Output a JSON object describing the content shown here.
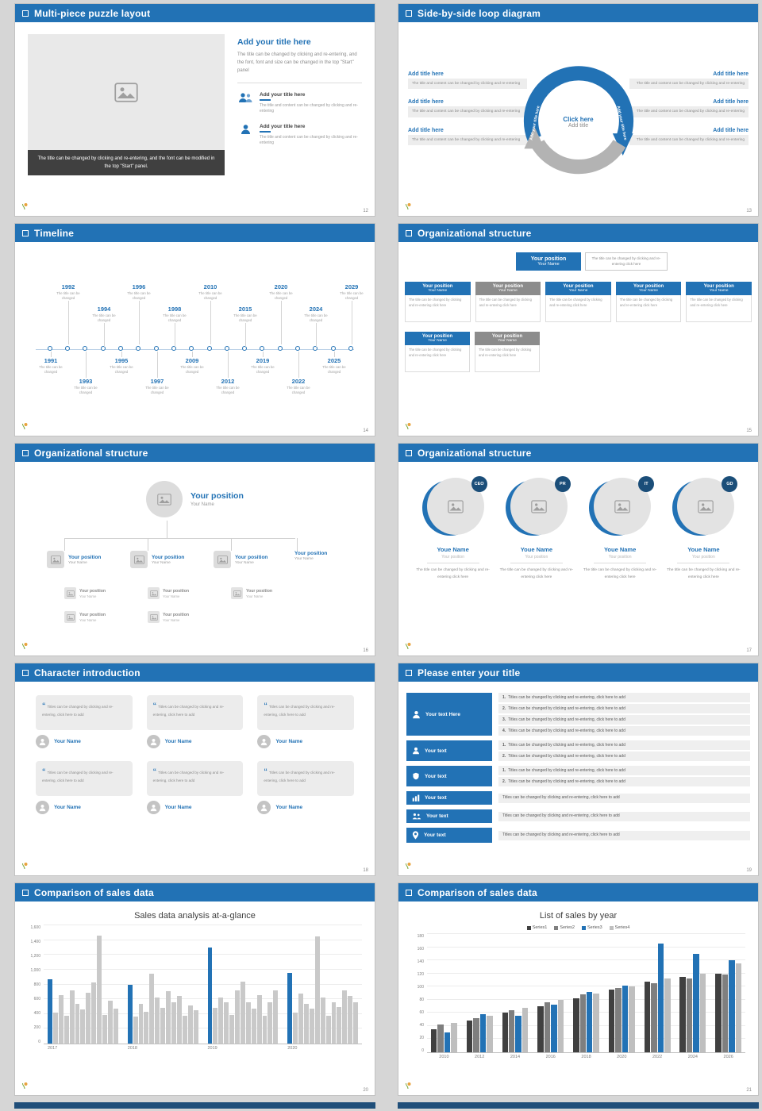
{
  "common": {
    "your_position": "Your position",
    "your_name": "Your Name",
    "youe_name": "Youe Name",
    "add_your_title": "Add your title here",
    "add_title_here": "Add title here",
    "tl_sub": "The title can be changed",
    "change_click": "The title can be changed by clicking and re-entering click here",
    "title_content": "The title and content can be changed by clicking and re-entering",
    "titles_add": "Titles can be changed by clicking and re-entering, click here to add"
  },
  "slides": {
    "puzzle": {
      "title": "Multi-piece puzzle layout",
      "page": "12",
      "caption": "The title can be changed by clicking and re-entering, and the font can be modified in the top \"Start\" panel.",
      "heading": "Add your title here",
      "body": "The title can be changed by clicking and re-entering, and the font, font and size can be changed in the top \"Start\" panel"
    },
    "loop": {
      "title": "Side-by-side loop diagram",
      "page": "13",
      "center_line1": "Click here",
      "center_line2": "Add title",
      "arrow_left": "Add your title here",
      "arrow_right": "Add your title here"
    },
    "timeline": {
      "title": "Timeline",
      "page": "14",
      "years": [
        "1991",
        "1992",
        "1993",
        "1994",
        "1995",
        "1996",
        "1997",
        "1998",
        "2009",
        "2010",
        "2012",
        "2015",
        "2019",
        "2020",
        "2022",
        "2024",
        "2025",
        "2029"
      ]
    },
    "org1": {
      "title": "Organizational structure",
      "page": "15"
    },
    "org2": {
      "title": "Organizational structure",
      "page": "16"
    },
    "org3": {
      "title": "Organizational structure",
      "page": "17",
      "badges": [
        "CEO",
        "PR",
        "IT",
        "GD"
      ]
    },
    "character": {
      "title": "Character introduction",
      "page": "18"
    },
    "enter": {
      "title": "Please enter your title",
      "page": "19",
      "btn_main": "Your text Here",
      "btn": "Your text",
      "numbers": [
        "1.",
        "2.",
        "3.",
        "4."
      ]
    },
    "sales1": {
      "title": "Comparison of sales data",
      "page": "20"
    },
    "sales2": {
      "title": "Comparison of sales data",
      "page": "21"
    }
  },
  "chart_data": [
    {
      "type": "bar",
      "title": "Sales data analysis at-a-glance",
      "categories": [
        "2017",
        "2018",
        "2019",
        "2020"
      ],
      "bars_per_group": 13,
      "values": [
        870,
        420,
        650,
        380,
        720,
        540,
        460,
        690,
        830,
        1460,
        390,
        580,
        470,
        800,
        360,
        540,
        430,
        950,
        620,
        480,
        710,
        560,
        640,
        380,
        520,
        450,
        1300,
        480,
        620,
        560,
        390,
        720,
        840,
        560,
        470,
        650,
        380,
        560,
        720,
        960,
        420,
        680,
        540,
        470,
        1450,
        620,
        380,
        560,
        490,
        720,
        640,
        560
      ],
      "highlight_indices": [
        0,
        13,
        26,
        39
      ],
      "bar_color": "#c9c9c9",
      "highlight_color": "#2272b5",
      "ylim": [
        0,
        1600
      ],
      "yticks": [
        "0",
        "200",
        "400",
        "600",
        "800",
        "1,000",
        "1,200",
        "1,400",
        "1,600"
      ],
      "xlabel": "",
      "ylabel": "",
      "legend_position": "none",
      "grid": true
    },
    {
      "type": "bar",
      "title": "List of sales by year",
      "categories": [
        "2010",
        "2012",
        "2014",
        "2016",
        "2018",
        "2020",
        "2022",
        "2024",
        "2026"
      ],
      "ylim": [
        0,
        180
      ],
      "yticks": [
        "0",
        "20",
        "40",
        "60",
        "80",
        "100",
        "120",
        "140",
        "160",
        "180"
      ],
      "series": [
        {
          "name": "Series1",
          "color": "#404040",
          "values": [
            35,
            48,
            60,
            70,
            82,
            95,
            108,
            115,
            120
          ]
        },
        {
          "name": "Series2",
          "color": "#7f7f7f",
          "values": [
            42,
            52,
            64,
            76,
            88,
            98,
            105,
            112,
            118
          ]
        },
        {
          "name": "Series3",
          "color": "#2272b5",
          "values": [
            30,
            58,
            55,
            72,
            92,
            102,
            165,
            150,
            140
          ]
        },
        {
          "name": "Series4",
          "color": "#bfbfbf",
          "values": [
            45,
            55,
            68,
            80,
            90,
            100,
            112,
            120,
            135
          ]
        }
      ],
      "legend_position": "top",
      "grid": true
    }
  ],
  "colors": {
    "accent_blue": "#2272b5",
    "header_blue": "#2272b5",
    "dark_caption": "#404040",
    "badge_navy": "#1b4e79"
  }
}
